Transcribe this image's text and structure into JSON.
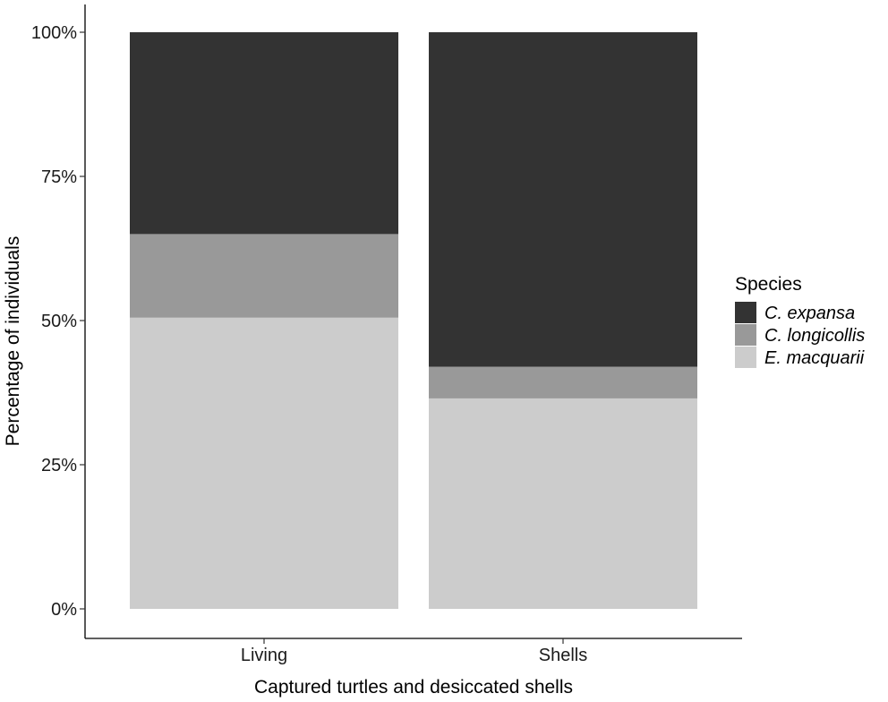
{
  "chart_data": {
    "type": "bar",
    "stacked": true,
    "categories": [
      "Living",
      "Shells"
    ],
    "series": [
      {
        "name": "E. macquarii",
        "values": [
          50.5,
          36.5
        ],
        "color": "#cccccc"
      },
      {
        "name": "C. longicollis",
        "values": [
          14.5,
          5.5
        ],
        "color": "#999999"
      },
      {
        "name": "C. expansa",
        "values": [
          35.0,
          58.0
        ],
        "color": "#333333"
      }
    ],
    "legend_order": [
      "C. expansa",
      "C. longicollis",
      "E. macquarii"
    ],
    "legend_title": "Species",
    "legend_position": "right",
    "xlabel": "Captured turtles and desiccated shells",
    "ylabel": "Percentage of individuals",
    "ylim": [
      0,
      100
    ],
    "yticks": [
      0,
      25,
      50,
      75,
      100
    ],
    "ytick_labels": [
      "0%",
      "25%",
      "50%",
      "75%",
      "100%"
    ],
    "grid": false
  }
}
